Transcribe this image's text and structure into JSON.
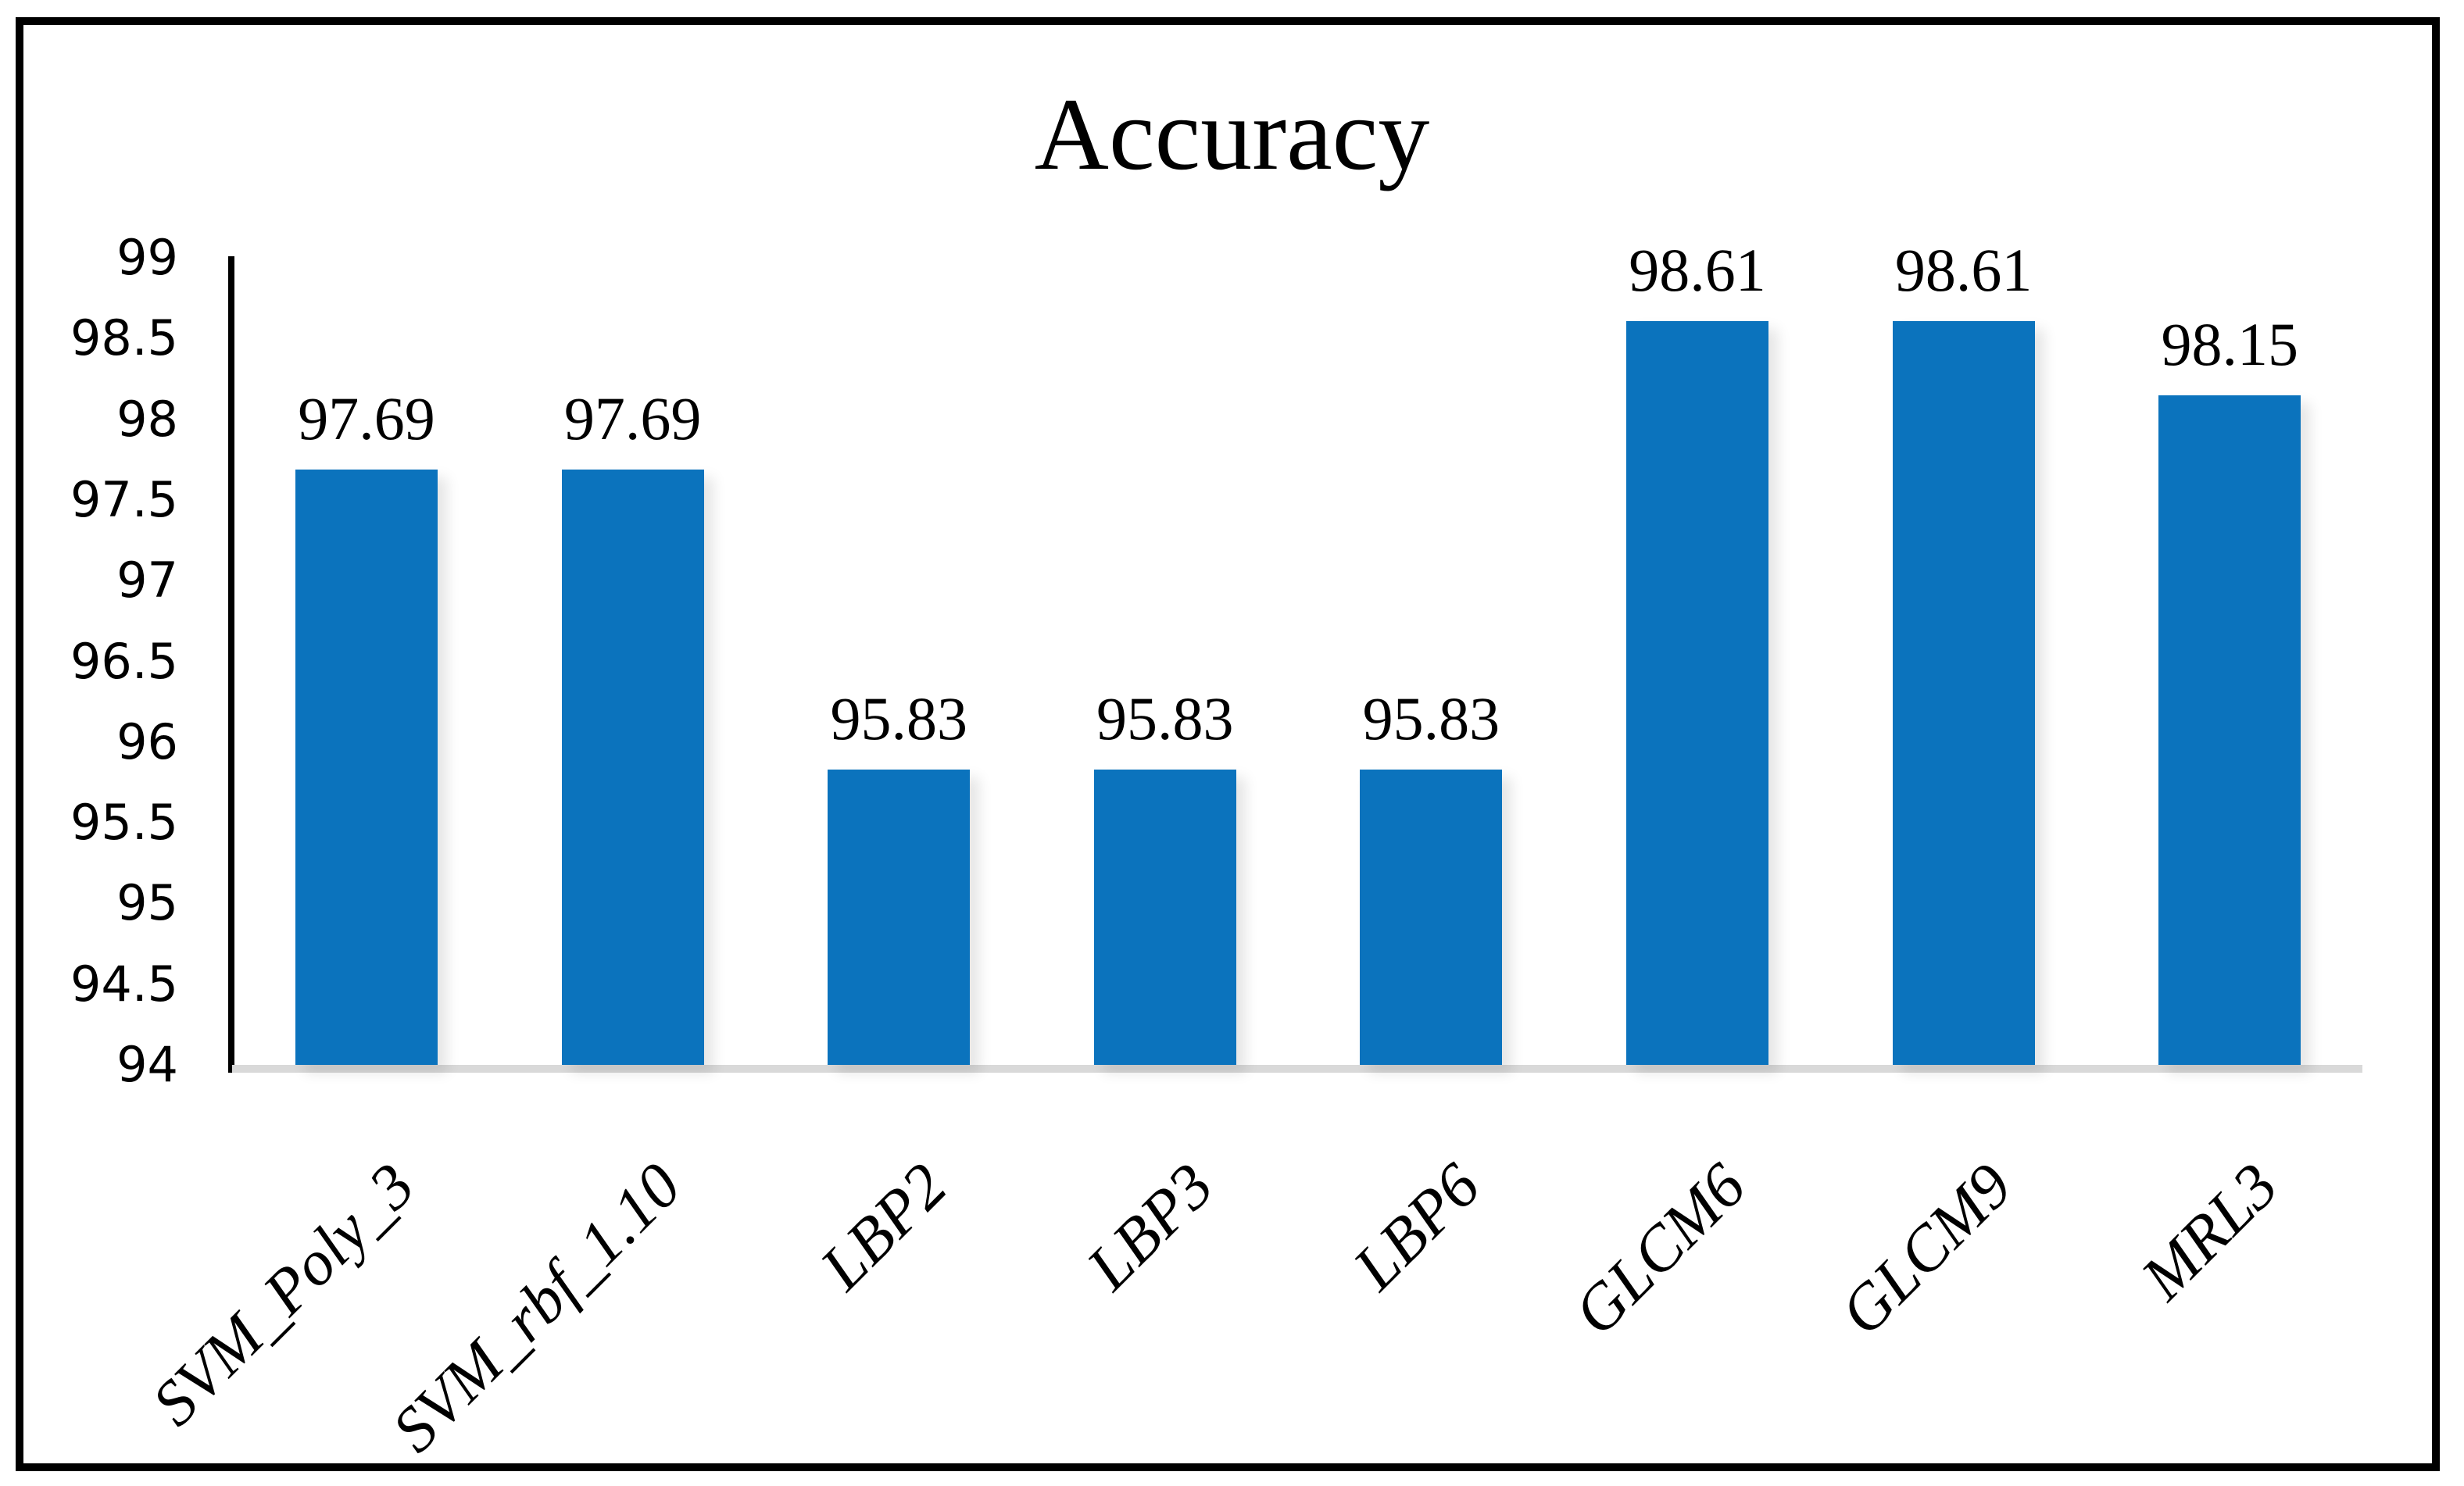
{
  "chart": {
    "title": "Accuracy"
  },
  "chart_data": {
    "type": "bar",
    "title": "Accuracy",
    "xlabel": "",
    "ylabel": "",
    "categories": [
      "SVM_Poly_3",
      "SVM_rbf_1.10",
      "LBP2",
      "LBP3",
      "LBP6",
      "GLCM6",
      "GLCM9",
      "MRL3"
    ],
    "values": [
      97.69,
      97.69,
      95.83,
      95.83,
      95.83,
      98.61,
      98.61,
      98.15
    ],
    "value_labels": [
      "97.69",
      "97.69",
      "95.83",
      "95.83",
      "95.83",
      "98.61",
      "98.61",
      "98.15"
    ],
    "ylim": [
      94,
      99
    ],
    "y_tick_step": 0.5,
    "y_ticks": [
      "99",
      "98.5",
      "98",
      "97.5",
      "97",
      "96.5",
      "96",
      "95.5",
      "95",
      "94.5",
      "94"
    ],
    "grid": false,
    "legend": false,
    "colors": {
      "bar_fill": "#0b73bd",
      "baseline": "#d9d9d9",
      "axis_line": "#000000",
      "text": "#000000",
      "frame_border": "#000000",
      "background": "#ffffff"
    }
  }
}
